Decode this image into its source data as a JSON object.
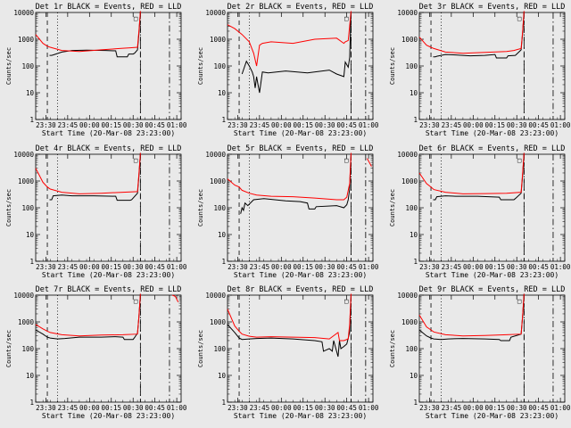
{
  "colors": {
    "background": "#e9e9e9",
    "events": "#000000",
    "lld": "#ff0000",
    "axes": "#000000"
  },
  "chart_data": [
    {
      "type": "line",
      "title": "Det 1r BLACK = Events, RED = LLD",
      "xlabel": "Start Time (20-Mar-08 23:23:00)",
      "ylabel": "Counts/sec",
      "ylim": [
        1,
        10000
      ],
      "yscale": "log",
      "yticks": [
        "1",
        "10",
        "100",
        "1000",
        "10000"
      ],
      "xticks": [
        "23:30",
        "23:45",
        "00:00",
        "00:15",
        "00:30",
        "00:45",
        "01:00"
      ],
      "xlim_minutes": [
        0,
        100
      ],
      "vlines": {
        "dashed": [
          8,
          72
        ],
        "dotted": [
          15
        ],
        "dashdot": [
          72,
          92
        ]
      },
      "marker": {
        "label": "□",
        "x": 72
      },
      "series": [
        {
          "name": "Events",
          "x": [
            0,
            8,
            9.5,
            11,
            12,
            18,
            25,
            35,
            48,
            55,
            56,
            63,
            64,
            67,
            68,
            70,
            71,
            72
          ],
          "y": [
            null,
            null,
            250,
            250,
            260,
            330,
            380,
            390,
            380,
            370,
            220,
            220,
            280,
            280,
            300,
            400,
            1600,
            12000
          ]
        },
        {
          "name": "LLD",
          "x": [
            0,
            5,
            8,
            10,
            18,
            30,
            45,
            60,
            65,
            70,
            71,
            72
          ],
          "y": [
            1500,
            700,
            550,
            500,
            380,
            350,
            400,
            460,
            480,
            500,
            2000,
            12000
          ]
        }
      ]
    },
    {
      "type": "line",
      "title": "Det 2r BLACK = Events, RED = LLD",
      "xlabel": "Start Time (20-Mar-08 23:23:00)",
      "ylabel": "Counts/sec",
      "ylim": [
        1,
        10000
      ],
      "yscale": "log",
      "yticks": [
        "1",
        "10",
        "100",
        "1000",
        "10000"
      ],
      "xticks": [
        "23:30",
        "23:45",
        "00:00",
        "00:15",
        "00:30",
        "00:45",
        "01:00"
      ],
      "xlim_minutes": [
        0,
        100
      ],
      "vlines": {
        "dashed": [
          8,
          85
        ],
        "dotted": [
          15
        ],
        "dashdot": [
          85,
          95
        ]
      },
      "marker": {
        "label": "□",
        "x": 85
      },
      "series": [
        {
          "name": "Events",
          "x": [
            8,
            10,
            13,
            15,
            17,
            18,
            19,
            20,
            21,
            22,
            24,
            28,
            40,
            55,
            70,
            75,
            80,
            81,
            83,
            84,
            85
          ],
          "y": [
            null,
            50,
            150,
            100,
            60,
            40,
            15,
            40,
            20,
            10,
            60,
            55,
            65,
            55,
            70,
            50,
            40,
            140,
            90,
            200,
            12000
          ]
        },
        {
          "name": "LLD",
          "x": [
            0,
            5,
            10,
            15,
            18,
            20,
            22,
            24,
            30,
            45,
            60,
            75,
            80,
            81,
            83,
            85,
            86,
            88,
            90,
            92,
            94
          ],
          "y": [
            3500,
            2500,
            1500,
            800,
            300,
            100,
            600,
            700,
            800,
            700,
            1000,
            1100,
            700,
            800,
            900,
            12000,
            null,
            null,
            5000,
            null,
            8000
          ]
        }
      ]
    },
    {
      "type": "line",
      "title": "Det 3r BLACK = Events, RED = LLD",
      "xlabel": "Start Time (20-Mar-08 23:23:00)",
      "ylabel": "Counts/sec",
      "ylim": [
        1,
        10000
      ],
      "yscale": "log",
      "yticks": [
        "1",
        "10",
        "100",
        "1000",
        "10000"
      ],
      "xticks": [
        "23:30",
        "23:45",
        "00:00",
        "00:15",
        "00:30",
        "00:45",
        "01:00"
      ],
      "xlim_minutes": [
        0,
        100
      ],
      "vlines": {
        "dashed": [
          8,
          72
        ],
        "dotted": [
          15
        ],
        "dashdot": [
          72,
          92
        ]
      },
      "marker": {
        "label": "□",
        "x": 72
      },
      "series": [
        {
          "name": "Events",
          "x": [
            8,
            9.5,
            11,
            12,
            18,
            25,
            35,
            45,
            52,
            53,
            60,
            61,
            66,
            67,
            70,
            71,
            72
          ],
          "y": [
            null,
            220,
            220,
            230,
            270,
            260,
            240,
            250,
            270,
            200,
            200,
            240,
            250,
            280,
            400,
            1600,
            12000
          ]
        },
        {
          "name": "LLD",
          "x": [
            0,
            5,
            8,
            10,
            18,
            30,
            45,
            60,
            65,
            70,
            71,
            72
          ],
          "y": [
            1200,
            600,
            500,
            450,
            330,
            300,
            320,
            350,
            380,
            450,
            1800,
            12000
          ]
        }
      ]
    },
    {
      "type": "line",
      "title": "Det 4r BLACK = Events, RED = LLD",
      "xlabel": "Start Time (20-Mar-08 23:23:00)",
      "ylabel": "Counts/sec",
      "ylim": [
        1,
        10000
      ],
      "yscale": "log",
      "yticks": [
        "1",
        "10",
        "100",
        "1000",
        "10000"
      ],
      "xticks": [
        "23:30",
        "23:45",
        "00:00",
        "00:15",
        "00:30",
        "00:45",
        "01:00"
      ],
      "xlim_minutes": [
        0,
        100
      ],
      "vlines": {
        "dashed": [
          8,
          72
        ],
        "dotted": [
          15
        ],
        "dashdot": [
          72,
          92
        ]
      },
      "marker": {
        "label": "□",
        "x": 72
      },
      "series": [
        {
          "name": "Events",
          "x": [
            8,
            9.5,
            11,
            12,
            18,
            25,
            40,
            55,
            56,
            65,
            66,
            70,
            71,
            72
          ],
          "y": [
            null,
            200,
            200,
            280,
            300,
            280,
            280,
            270,
            190,
            190,
            200,
            350,
            1500,
            12000
          ]
        },
        {
          "name": "LLD",
          "x": [
            0,
            5,
            8,
            10,
            18,
            30,
            45,
            60,
            70,
            71,
            72
          ],
          "y": [
            3000,
            900,
            600,
            500,
            380,
            330,
            350,
            380,
            400,
            1800,
            12000
          ]
        }
      ]
    },
    {
      "type": "line",
      "title": "Det 5r BLACK = Events, RED = LLD",
      "xlabel": "Start Time (20-Mar-08 23:23:00)",
      "ylabel": "Counts/sec",
      "ylim": [
        1,
        10000
      ],
      "yscale": "log",
      "yticks": [
        "1",
        "10",
        "100",
        "1000",
        "10000"
      ],
      "xticks": [
        "23:30",
        "23:45",
        "00:00",
        "00:15",
        "00:30",
        "00:45",
        "01:00"
      ],
      "xlim_minutes": [
        0,
        100
      ],
      "vlines": {
        "dashed": [
          8,
          85
        ],
        "dotted": [
          15
        ],
        "dashdot": [
          85,
          95
        ]
      },
      "marker": {
        "label": "□",
        "x": 85
      },
      "series": [
        {
          "name": "Events",
          "x": [
            8,
            9,
            10,
            11,
            12,
            14,
            18,
            25,
            40,
            50,
            55,
            56,
            60,
            61,
            75,
            80,
            82,
            83,
            84,
            85
          ],
          "y": [
            null,
            60,
            100,
            80,
            150,
            120,
            200,
            220,
            180,
            170,
            150,
            90,
            90,
            110,
            120,
            100,
            130,
            200,
            500,
            12000
          ]
        },
        {
          "name": "LLD",
          "x": [
            0,
            5,
            8,
            10,
            15,
            20,
            30,
            45,
            60,
            75,
            80,
            82,
            84,
            85,
            86,
            96,
            99
          ],
          "y": [
            1200,
            700,
            600,
            450,
            350,
            300,
            270,
            260,
            230,
            200,
            200,
            250,
            800,
            12000,
            null,
            7000,
            3500
          ]
        }
      ]
    },
    {
      "type": "line",
      "title": "Det 6r BLACK = Events, RED = LLD",
      "xlabel": "Start Time (20-Mar-08 23:23:00)",
      "ylabel": "Counts/sec",
      "ylim": [
        1,
        10000
      ],
      "yscale": "log",
      "yticks": [
        "1",
        "10",
        "100",
        "1000",
        "10000"
      ],
      "xticks": [
        "23:30",
        "23:45",
        "00:00",
        "00:15",
        "00:30",
        "00:45",
        "01:00"
      ],
      "xlim_minutes": [
        0,
        100
      ],
      "vlines": {
        "dashed": [
          8,
          72
        ],
        "dotted": [
          15
        ],
        "dashdot": [
          72,
          92
        ]
      },
      "marker": {
        "label": "□",
        "x": 72
      },
      "series": [
        {
          "name": "Events",
          "x": [
            8,
            9.5,
            11,
            12,
            18,
            25,
            40,
            55,
            56,
            65,
            66,
            70,
            71,
            72
          ],
          "y": [
            null,
            200,
            200,
            260,
            280,
            270,
            270,
            250,
            200,
            200,
            220,
            350,
            1500,
            12000
          ]
        },
        {
          "name": "LLD",
          "x": [
            0,
            5,
            8,
            10,
            18,
            30,
            45,
            60,
            70,
            71,
            72
          ],
          "y": [
            2000,
            800,
            600,
            480,
            380,
            330,
            340,
            350,
            380,
            1800,
            12000
          ]
        }
      ]
    },
    {
      "type": "line",
      "title": "Det 7r BLACK = Events, RED = LLD",
      "xlabel": "Start Time (20-Mar-08 23:23:00)",
      "ylabel": "Counts/sec",
      "ylim": [
        1,
        10000
      ],
      "yscale": "log",
      "yticks": [
        "1",
        "10",
        "100",
        "1000",
        "10000"
      ],
      "xticks": [
        "23:30",
        "23:45",
        "00:00",
        "00:15",
        "00:30",
        "00:45",
        "01:00"
      ],
      "xlim_minutes": [
        0,
        100
      ],
      "vlines": {
        "dashed": [
          8,
          72
        ],
        "dotted": [
          15
        ],
        "dashdot": [
          72,
          92
        ]
      },
      "marker": {
        "label": "□",
        "x": 72
      },
      "series": [
        {
          "name": "Events",
          "x": [
            0,
            5,
            8,
            10,
            15,
            20,
            30,
            45,
            55,
            60,
            61,
            67,
            68,
            70,
            71,
            72
          ],
          "y": [
            500,
            350,
            270,
            250,
            230,
            240,
            270,
            270,
            280,
            270,
            220,
            220,
            260,
            380,
            1500,
            12000
          ]
        },
        {
          "name": "LLD",
          "x": [
            0,
            5,
            8,
            10,
            18,
            30,
            45,
            60,
            70,
            71,
            72,
            73,
            94,
            96,
            98
          ],
          "y": [
            800,
            550,
            450,
            400,
            330,
            300,
            320,
            330,
            350,
            1600,
            12000,
            null,
            10000,
            9000,
            5500
          ]
        }
      ]
    },
    {
      "type": "line",
      "title": "Det 8r BLACK = Events, RED = LLD",
      "xlabel": "Start Time (20-Mar-08 23:23:00)",
      "ylabel": "Counts/sec",
      "ylim": [
        1,
        10000
      ],
      "yscale": "log",
      "yticks": [
        "1",
        "10",
        "100",
        "1000",
        "10000"
      ],
      "xticks": [
        "23:30",
        "23:45",
        "00:00",
        "00:15",
        "00:30",
        "00:45",
        "01:00"
      ],
      "xlim_minutes": [
        0,
        100
      ],
      "vlines": {
        "dashed": [
          8,
          85
        ],
        "dotted": [
          15
        ],
        "dashdot": [
          85,
          95
        ]
      },
      "marker": {
        "label": "□",
        "x": 85
      },
      "series": [
        {
          "name": "Events",
          "x": [
            0,
            5,
            8,
            10,
            15,
            20,
            30,
            45,
            60,
            65,
            66,
            68,
            70,
            72,
            73,
            76,
            77,
            78,
            80,
            82,
            84,
            85
          ],
          "y": [
            800,
            400,
            250,
            220,
            230,
            240,
            250,
            230,
            200,
            180,
            80,
            90,
            100,
            80,
            200,
            50,
            200,
            100,
            120,
            150,
            400,
            12000
          ]
        },
        {
          "name": "LLD",
          "x": [
            0,
            5,
            8,
            10,
            15,
            20,
            30,
            45,
            60,
            70,
            76,
            77,
            80,
            83,
            84,
            85
          ],
          "y": [
            3000,
            700,
            450,
            350,
            290,
            270,
            280,
            270,
            260,
            230,
            400,
            200,
            200,
            230,
            800,
            12000
          ]
        }
      ]
    },
    {
      "type": "line",
      "title": "Det 9r BLACK = Events, RED = LLD",
      "xlabel": "Start Time (20-Mar-08 23:23:00)",
      "ylabel": "Counts/sec",
      "ylim": [
        1,
        10000
      ],
      "yscale": "log",
      "yticks": [
        "1",
        "10",
        "100",
        "1000",
        "10000"
      ],
      "xticks": [
        "23:30",
        "23:45",
        "00:00",
        "00:15",
        "00:30",
        "00:45",
        "01:00"
      ],
      "xlim_minutes": [
        0,
        100
      ],
      "vlines": {
        "dashed": [
          8,
          72
        ],
        "dotted": [
          15
        ],
        "dashdot": [
          72,
          92
        ]
      },
      "marker": {
        "label": "□",
        "x": 72
      },
      "series": [
        {
          "name": "Events",
          "x": [
            0,
            5,
            8,
            10,
            15,
            20,
            30,
            45,
            55,
            56,
            62,
            63,
            70,
            71,
            72
          ],
          "y": [
            500,
            300,
            250,
            230,
            220,
            230,
            240,
            230,
            220,
            200,
            200,
            270,
            350,
            1500,
            12000
          ]
        },
        {
          "name": "LLD",
          "x": [
            0,
            5,
            8,
            10,
            18,
            30,
            45,
            60,
            70,
            71,
            72
          ],
          "y": [
            1800,
            650,
            500,
            420,
            330,
            300,
            310,
            330,
            350,
            1600,
            12000
          ]
        }
      ]
    }
  ]
}
